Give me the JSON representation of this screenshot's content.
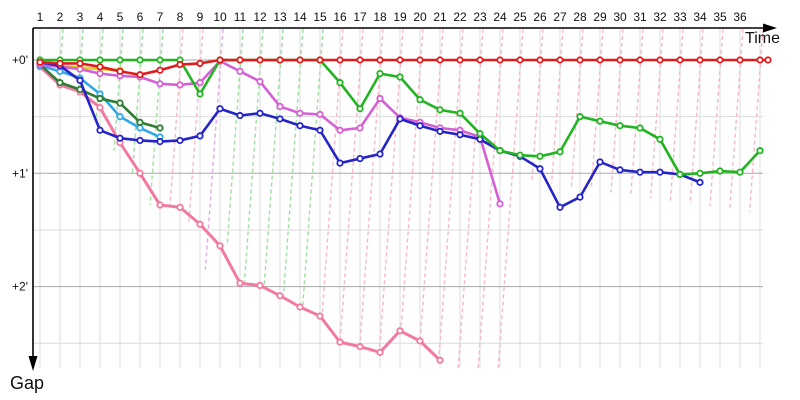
{
  "axes": {
    "x_label": "Time",
    "y_label": "Gap",
    "x_ticks": [
      1,
      2,
      3,
      4,
      5,
      6,
      7,
      8,
      9,
      10,
      11,
      12,
      13,
      14,
      15,
      16,
      17,
      18,
      19,
      20,
      21,
      22,
      23,
      24,
      25,
      26,
      27,
      28,
      29,
      30,
      31,
      32,
      33,
      34,
      35,
      36
    ],
    "y_ticks": [
      {
        "label": "+0'",
        "value": 0
      },
      {
        "label": "+1'",
        "value": 1
      },
      {
        "label": "+2'",
        "value": 2
      }
    ],
    "y_minor_gridlines": [
      0.5,
      1.5,
      2.5
    ],
    "y_direction": "down"
  },
  "colors": {
    "red": "#e11b1b",
    "green": "#21b421",
    "dark_green": "#2e7d32",
    "magenta": "#d55fd5",
    "blue": "#2424c8",
    "light_blue": "#2fa8e8",
    "yellow": "#ddd020",
    "pink": "#f2799f",
    "dash_green": "#9fdf9f",
    "dash_pink": "#f6b9c4",
    "dash_magenta": "#e2aae8",
    "grid_major": "#a8a8a8",
    "grid_minor": "#dcdcdc",
    "axis": "#000000",
    "tick_text": "#111111"
  },
  "chart_data": {
    "type": "line",
    "title": "",
    "xlabel": "Time",
    "ylabel": "Gap",
    "x_range": [
      1,
      37.4
    ],
    "y_range_minutes": [
      0,
      2.9
    ],
    "grid": true,
    "legend": "none",
    "point_style": "open-circle",
    "series": [
      {
        "name": "pink",
        "color_key": "pink",
        "width": 3,
        "points": [
          [
            1,
            0.06
          ],
          [
            2,
            0.22
          ],
          [
            3,
            0.28
          ],
          [
            4,
            0.42
          ],
          [
            5,
            0.73
          ],
          [
            6,
            1.0
          ],
          [
            7,
            1.28
          ],
          [
            8,
            1.3
          ],
          [
            9,
            1.45
          ],
          [
            10,
            1.64
          ],
          [
            11,
            1.97
          ],
          [
            12,
            1.99
          ],
          [
            13,
            2.08
          ],
          [
            14,
            2.18
          ],
          [
            15,
            2.26
          ],
          [
            16,
            2.49
          ],
          [
            17,
            2.53
          ],
          [
            18,
            2.58
          ],
          [
            19,
            2.39
          ],
          [
            20,
            2.48
          ],
          [
            21,
            2.65
          ]
        ]
      },
      {
        "name": "light-blue",
        "color_key": "light_blue",
        "width": 2.6,
        "points": [
          [
            1,
            0.05
          ],
          [
            2,
            0.1
          ],
          [
            3,
            0.16
          ],
          [
            4,
            0.3
          ],
          [
            5,
            0.5
          ],
          [
            6,
            0.6
          ],
          [
            7,
            0.68
          ]
        ]
      },
      {
        "name": "dark-green",
        "color_key": "dark_green",
        "width": 2.6,
        "points": [
          [
            1,
            0.04
          ],
          [
            2,
            0.2
          ],
          [
            3,
            0.26
          ],
          [
            4,
            0.34
          ],
          [
            5,
            0.38
          ],
          [
            6,
            0.55
          ],
          [
            7,
            0.6
          ]
        ]
      },
      {
        "name": "yellow",
        "color_key": "yellow",
        "width": 2.6,
        "points": [
          [
            1,
            0.03
          ],
          [
            2,
            0.055
          ],
          [
            3,
            0.065
          ],
          [
            4,
            0.08
          ],
          [
            5,
            0.09
          ]
        ]
      },
      {
        "name": "magenta",
        "color_key": "magenta",
        "width": 2.6,
        "points": [
          [
            1,
            0.04
          ],
          [
            2,
            0.06
          ],
          [
            3,
            0.08
          ],
          [
            4,
            0.12
          ],
          [
            5,
            0.14
          ],
          [
            6,
            0.15
          ],
          [
            7,
            0.21
          ],
          [
            8,
            0.22
          ],
          [
            9,
            0.2
          ],
          [
            10,
            0.01
          ],
          [
            11,
            0.1
          ],
          [
            12,
            0.19
          ],
          [
            13,
            0.41
          ],
          [
            14,
            0.47
          ],
          [
            15,
            0.48
          ],
          [
            16,
            0.62
          ],
          [
            17,
            0.6
          ],
          [
            18,
            0.34
          ],
          [
            19,
            0.51
          ],
          [
            20,
            0.55
          ],
          [
            21,
            0.6
          ],
          [
            22,
            0.62
          ],
          [
            23,
            0.68
          ],
          [
            24,
            1.27
          ]
        ]
      },
      {
        "name": "blue",
        "color_key": "blue",
        "width": 2.6,
        "points": [
          [
            1,
            0.02
          ],
          [
            2,
            0.05
          ],
          [
            3,
            0.18
          ],
          [
            4,
            0.62
          ],
          [
            5,
            0.69
          ],
          [
            6,
            0.71
          ],
          [
            7,
            0.72
          ],
          [
            8,
            0.71
          ],
          [
            9,
            0.67
          ],
          [
            10,
            0.43
          ],
          [
            11,
            0.49
          ],
          [
            12,
            0.47
          ],
          [
            13,
            0.52
          ],
          [
            14,
            0.58
          ],
          [
            15,
            0.62
          ],
          [
            16,
            0.91
          ],
          [
            17,
            0.87
          ],
          [
            18,
            0.83
          ],
          [
            19,
            0.52
          ],
          [
            20,
            0.58
          ],
          [
            21,
            0.63
          ],
          [
            22,
            0.66
          ],
          [
            23,
            0.7
          ],
          [
            24,
            0.8
          ],
          [
            25,
            0.85
          ],
          [
            26,
            0.96
          ],
          [
            27,
            1.3
          ],
          [
            28,
            1.21
          ],
          [
            29,
            0.9
          ],
          [
            30,
            0.97
          ],
          [
            31,
            0.99
          ],
          [
            32,
            0.99
          ],
          [
            33,
            1.01
          ],
          [
            34,
            1.08
          ]
        ]
      },
      {
        "name": "green",
        "color_key": "green",
        "width": 2.6,
        "points": [
          [
            1,
            0
          ],
          [
            2,
            0
          ],
          [
            3,
            0
          ],
          [
            4,
            0
          ],
          [
            5,
            0
          ],
          [
            6,
            0
          ],
          [
            7,
            0
          ],
          [
            8,
            0
          ],
          [
            9,
            0.3
          ],
          [
            10,
            0
          ],
          [
            11,
            0
          ],
          [
            12,
            0
          ],
          [
            13,
            0
          ],
          [
            14,
            0
          ],
          [
            15,
            0
          ],
          [
            16,
            0.2
          ],
          [
            17,
            0.43
          ],
          [
            18,
            0.12
          ],
          [
            19,
            0.15
          ],
          [
            20,
            0.35
          ],
          [
            21,
            0.44
          ],
          [
            22,
            0.47
          ],
          [
            23,
            0.65
          ],
          [
            24,
            0.8
          ],
          [
            25,
            0.84
          ],
          [
            26,
            0.85
          ],
          [
            27,
            0.81
          ],
          [
            28,
            0.5
          ],
          [
            29,
            0.54
          ],
          [
            30,
            0.58
          ],
          [
            31,
            0.6
          ],
          [
            32,
            0.7
          ],
          [
            33,
            1.01
          ],
          [
            34,
            1.0
          ],
          [
            35,
            0.98
          ],
          [
            36,
            0.99
          ],
          [
            37,
            0.8
          ]
        ]
      },
      {
        "name": "red",
        "color_key": "red",
        "width": 2.6,
        "points": [
          [
            1,
            0.02
          ],
          [
            2,
            0.03
          ],
          [
            3,
            0.03
          ],
          [
            4,
            0.06
          ],
          [
            5,
            0.1
          ],
          [
            6,
            0.13
          ],
          [
            7,
            0.09
          ],
          [
            8,
            0.04
          ],
          [
            9,
            0.03
          ],
          [
            10,
            0
          ],
          [
            11,
            0
          ],
          [
            12,
            0
          ],
          [
            13,
            0
          ],
          [
            14,
            0
          ],
          [
            15,
            0
          ],
          [
            16,
            0
          ],
          [
            17,
            0
          ],
          [
            18,
            0
          ],
          [
            19,
            0
          ],
          [
            20,
            0
          ],
          [
            21,
            0
          ],
          [
            22,
            0
          ],
          [
            23,
            0
          ],
          [
            24,
            0
          ],
          [
            25,
            0
          ],
          [
            26,
            0
          ],
          [
            27,
            0
          ],
          [
            28,
            0
          ],
          [
            29,
            0
          ],
          [
            30,
            0
          ],
          [
            31,
            0
          ],
          [
            32,
            0
          ],
          [
            33,
            0
          ],
          [
            34,
            0
          ],
          [
            35,
            0
          ],
          [
            36,
            0
          ],
          [
            37,
            0
          ],
          [
            37.4,
            0
          ]
        ]
      }
    ],
    "drop_lines": [
      {
        "t": 2,
        "color_key": "dash_green",
        "end_gap": 0.25
      },
      {
        "t": 3,
        "color_key": "dash_green",
        "end_gap": 0.32
      },
      {
        "t": 4,
        "color_key": "dash_green",
        "end_gap": 0.55
      },
      {
        "t": 5,
        "color_key": "dash_green",
        "end_gap": 0.8
      },
      {
        "t": 6,
        "color_key": "dash_green",
        "end_gap": 1.0
      },
      {
        "t": 7,
        "color_key": "dash_green",
        "end_gap": 1.28
      },
      {
        "t": 8,
        "color_key": "dash_pink",
        "end_gap": 1.3
      },
      {
        "t": 9,
        "color_key": "dash_pink",
        "end_gap": 1.45
      },
      {
        "t": 10,
        "color_key": "dash_magenta",
        "end_gap": 1.85
      },
      {
        "t": 11,
        "color_key": "dash_green",
        "end_gap": 1.64
      },
      {
        "t": 12,
        "color_key": "dash_green",
        "end_gap": 1.97
      },
      {
        "t": 13,
        "color_key": "dash_green",
        "end_gap": 1.99
      },
      {
        "t": 14,
        "color_key": "dash_green",
        "end_gap": 2.08
      },
      {
        "t": 15,
        "color_key": "dash_green",
        "end_gap": 2.18
      },
      {
        "t": 16,
        "color_key": "dash_pink",
        "end_gap": 2.26
      },
      {
        "t": 17,
        "color_key": "dash_pink",
        "end_gap": 2.49
      },
      {
        "t": 18,
        "color_key": "dash_pink",
        "end_gap": 2.53
      },
      {
        "t": 19,
        "color_key": "dash_pink",
        "end_gap": 2.58
      },
      {
        "t": 20,
        "color_key": "dash_pink",
        "end_gap": 2.39
      },
      {
        "t": 21,
        "color_key": "dash_pink",
        "end_gap": 2.48
      },
      {
        "t": 22,
        "color_key": "dash_pink",
        "end_gap": 2.65
      },
      {
        "t": 23,
        "color_key": "dash_pink",
        "end_gap": 2.98
      },
      {
        "t": 24,
        "color_key": "dash_pink",
        "end_gap": 2.98
      },
      {
        "t": 25,
        "color_key": "dash_pink",
        "end_gap": 2.98
      },
      {
        "t": 26,
        "color_key": "dash_pink",
        "end_gap": 1.07
      },
      {
        "t": 27,
        "color_key": "dash_pink",
        "end_gap": 1.09
      },
      {
        "t": 28,
        "color_key": "dash_pink",
        "end_gap": 1.12
      },
      {
        "t": 29,
        "color_key": "dash_pink",
        "end_gap": 1.14
      },
      {
        "t": 30,
        "color_key": "dash_pink",
        "end_gap": 1.17
      },
      {
        "t": 31,
        "color_key": "dash_pink",
        "end_gap": 1.19
      },
      {
        "t": 32,
        "color_key": "dash_pink",
        "end_gap": 1.22
      },
      {
        "t": 33,
        "color_key": "dash_pink",
        "end_gap": 1.24
      },
      {
        "t": 34,
        "color_key": "dash_pink",
        "end_gap": 1.27
      },
      {
        "t": 35,
        "color_key": "dash_pink",
        "end_gap": 1.29
      },
      {
        "t": 36,
        "color_key": "dash_pink",
        "end_gap": 1.32
      },
      {
        "t": 37,
        "color_key": "dash_pink",
        "end_gap": 1.34
      }
    ]
  }
}
